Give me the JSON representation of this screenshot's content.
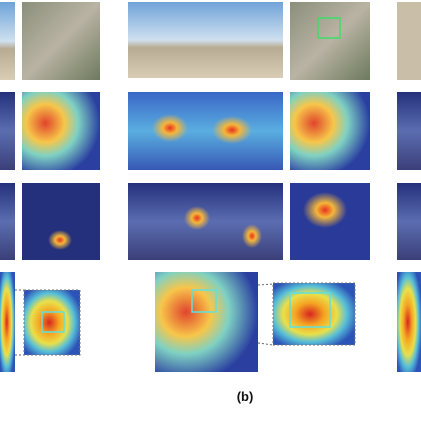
{
  "caption": "(b)"
}
